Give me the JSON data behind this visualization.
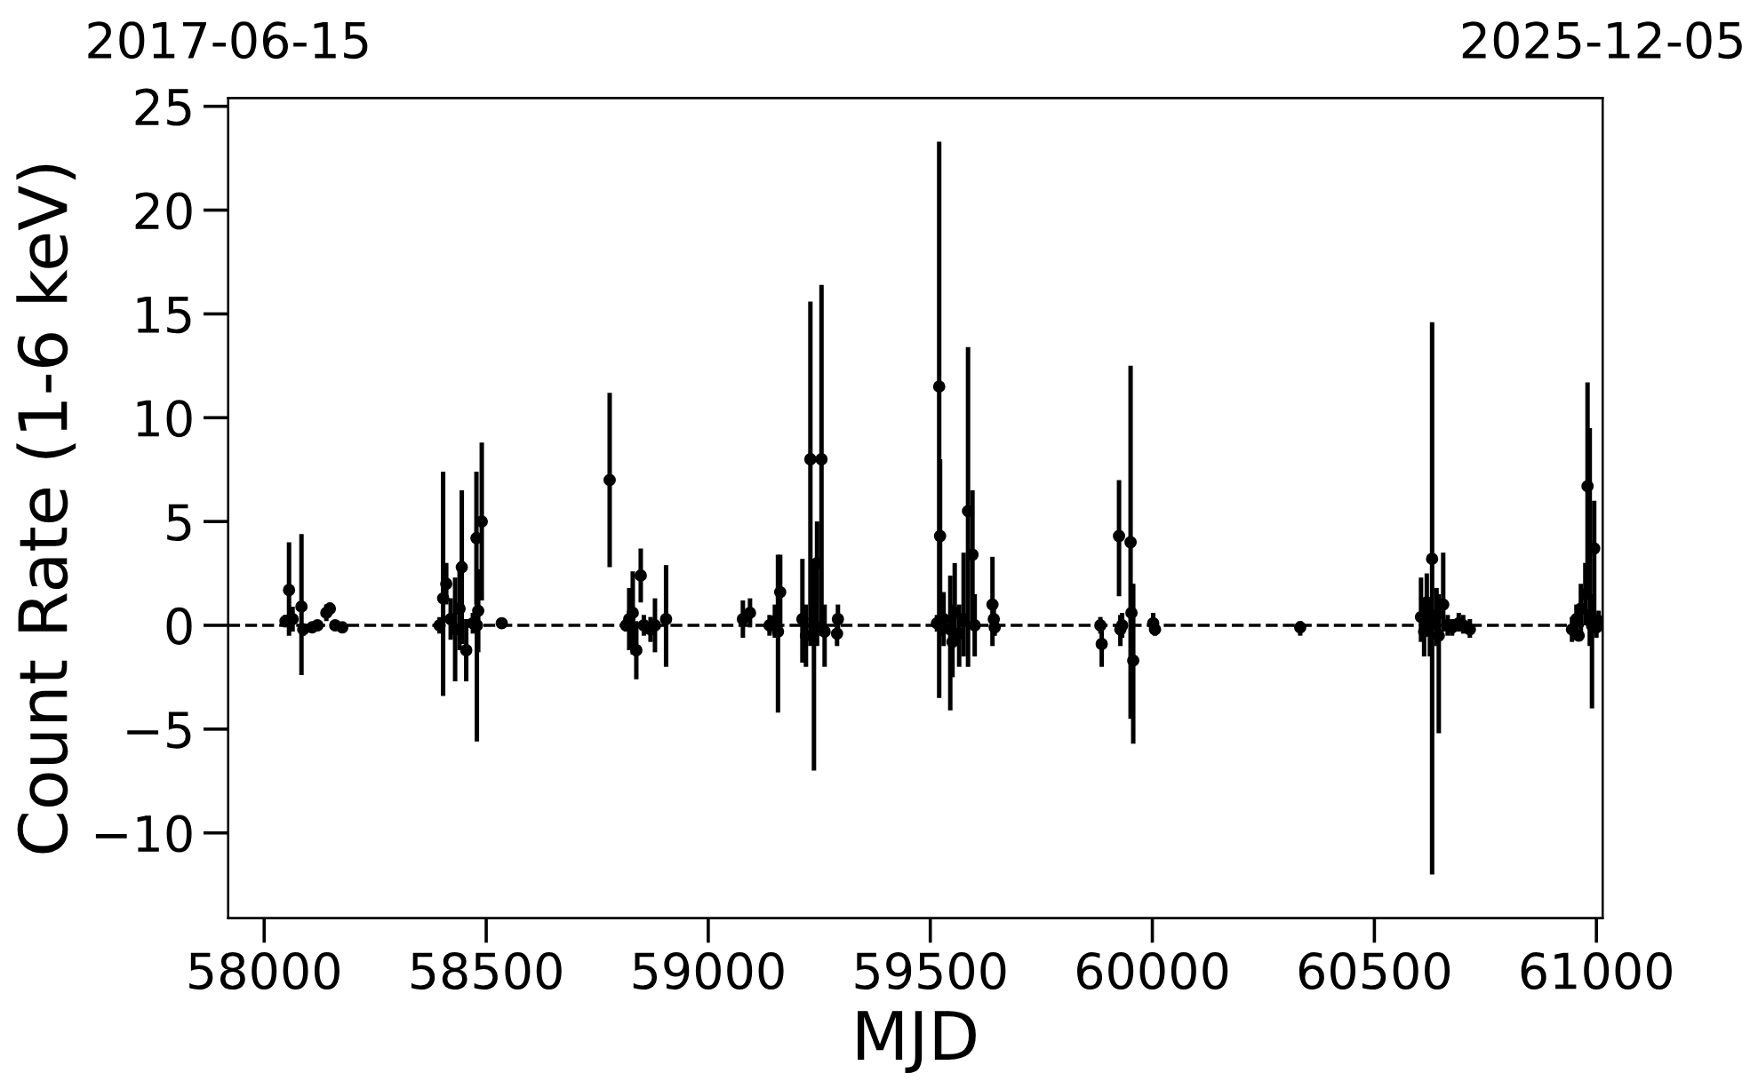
{
  "chart_data": {
    "type": "scatter",
    "xlabel": "MJD",
    "ylabel": "Count Rate (1-6 keV)",
    "xlim": [
      57919,
      61014
    ],
    "xticks": [
      58000,
      58500,
      59000,
      59500,
      60000,
      60500,
      61000
    ],
    "x2lim": [
      "2017-06-15",
      "2025-12-05"
    ],
    "x2ticks": [
      "2017-06-15",
      "2025-12-05"
    ],
    "ylim": [
      -14.1,
      25.4
    ],
    "yticks": [
      {
        "value": -10,
        "label": "−10"
      },
      {
        "value": -5,
        "label": "−5"
      },
      0,
      5,
      10,
      15,
      20,
      25
    ],
    "grid": false,
    "legend": false,
    "marker": "circle",
    "ref_lines": [
      {
        "axis": "y",
        "value": 0,
        "color": "#000000",
        "line_style": "dashed"
      }
    ],
    "series": [
      {
        "color": "#000000",
        "x": [
          58048,
          58056,
          58064,
          58084,
          58088,
          58108,
          58120,
          58140,
          58148,
          58160,
          58176,
          58395,
          58403,
          58410,
          58420,
          58430,
          58440,
          58445,
          58455,
          58470,
          58478,
          58479,
          58482,
          58490,
          58535,
          58778,
          58815,
          58822,
          58830,
          58838,
          58848,
          58855,
          58870,
          58880,
          58905,
          59078,
          59094,
          59138,
          59150,
          59157,
          59162,
          59212,
          59220,
          59230,
          59238,
          59245,
          59255,
          59262,
          59290,
          59292,
          59515,
          59520,
          59522,
          59530,
          59545,
          59550,
          59555,
          59565,
          59575,
          59585,
          59595,
          59600,
          59640,
          59643,
          59645,
          59883,
          59886,
          59925,
          59928,
          59932,
          59951,
          59953,
          59957,
          60002,
          60006,
          60333,
          60605,
          60612,
          60618,
          60625,
          60630,
          60640,
          60645,
          60655,
          60665,
          60675,
          60690,
          60700,
          60715,
          60945,
          60955,
          60960,
          60965,
          60975,
          60980,
          60985,
          60990,
          60995,
          61000,
          61005
        ],
        "values": [
          0.2,
          1.7,
          0.3,
          0.9,
          -0.2,
          -0.1,
          0.0,
          0.6,
          0.8,
          0.0,
          -0.1,
          0.0,
          1.3,
          2.0,
          0.3,
          -0.2,
          0.8,
          2.8,
          -1.2,
          0.1,
          4.2,
          0.0,
          0.7,
          5.0,
          0.1,
          7.0,
          0.0,
          0.3,
          0.6,
          -1.2,
          2.4,
          0.0,
          -0.2,
          0.0,
          0.3,
          0.3,
          0.6,
          0.0,
          0.2,
          -0.3,
          1.6,
          0.3,
          -0.5,
          8.0,
          0.0,
          3.0,
          8.0,
          -0.3,
          -0.4,
          0.3,
          0.1,
          11.5,
          4.3,
          0.3,
          -0.2,
          -0.8,
          0.6,
          -0.4,
          0.3,
          5.5,
          3.4,
          0.0,
          1.0,
          0.3,
          -0.1,
          0.0,
          -0.9,
          4.3,
          -0.2,
          0.0,
          4.0,
          0.6,
          -1.7,
          0.1,
          -0.2,
          -0.1,
          0.4,
          -0.3,
          1.1,
          0.0,
          3.2,
          0.5,
          -0.5,
          1.0,
          0.0,
          -0.1,
          0.1,
          0.0,
          -0.2,
          -0.2,
          0.3,
          -0.5,
          0.8,
          1.5,
          6.7,
          0.5,
          0.0,
          3.7,
          -0.1,
          0.2
        ],
        "errors": [
          [
            -0.1,
            0.5
          ],
          [
            -0.5,
            4.0
          ],
          [
            -0.3,
            0.9
          ],
          [
            -2.4,
            4.4
          ],
          [
            -0.5,
            0.1
          ],
          [
            -0.3,
            0.1
          ],
          [
            -0.2,
            0.2
          ],
          [
            0.2,
            1.0
          ],
          [
            0.5,
            1.1
          ],
          [
            -0.2,
            0.2
          ],
          [
            -0.3,
            0.1
          ],
          [
            -0.4,
            0.4
          ],
          [
            -3.4,
            7.4
          ],
          [
            1.0,
            3.0
          ],
          [
            -0.7,
            1.3
          ],
          [
            -2.7,
            2.3
          ],
          [
            -1.2,
            2.8
          ],
          [
            -0.9,
            6.5
          ],
          [
            -2.7,
            0.3
          ],
          [
            -0.4,
            0.6
          ],
          [
            1.0,
            7.4
          ],
          [
            -5.6,
            2.0
          ],
          [
            -1.3,
            2.7
          ],
          [
            1.2,
            8.8
          ],
          [
            -0.1,
            0.3
          ],
          [
            2.8,
            11.2
          ],
          [
            -0.3,
            0.3
          ],
          [
            -1.2,
            1.8
          ],
          [
            -1.4,
            2.6
          ],
          [
            -2.6,
            0.2
          ],
          [
            1.1,
            3.7
          ],
          [
            -0.5,
            0.5
          ],
          [
            -0.8,
            0.4
          ],
          [
            -1.3,
            1.3
          ],
          [
            -2.0,
            2.9
          ],
          [
            -0.6,
            1.2
          ],
          [
            -0.1,
            1.3
          ],
          [
            -0.5,
            0.5
          ],
          [
            -0.6,
            1.0
          ],
          [
            -4.2,
            3.4
          ],
          [
            -0.2,
            3.4
          ],
          [
            -1.8,
            3.2
          ],
          [
            -2.0,
            1.0
          ],
          [
            -1.0,
            15.6
          ],
          [
            -7.0,
            3.0
          ],
          [
            -1.0,
            5.0
          ],
          [
            -0.5,
            16.4
          ],
          [
            -2.0,
            1.0
          ],
          [
            -1.0,
            0.5
          ],
          [
            -0.5,
            1.0
          ],
          [
            -0.3,
            0.5
          ],
          [
            -3.5,
            23.3
          ],
          [
            -0.5,
            8.0
          ],
          [
            -1.0,
            1.6
          ],
          [
            -4.1,
            2.4
          ],
          [
            -2.5,
            1.0
          ],
          [
            -1.0,
            3.0
          ],
          [
            -2.0,
            1.0
          ],
          [
            -1.5,
            3.5
          ],
          [
            -2.0,
            13.4
          ],
          [
            0.0,
            6.5
          ],
          [
            -1.5,
            1.5
          ],
          [
            -1.0,
            3.3
          ],
          [
            -0.5,
            1.0
          ],
          [
            -0.5,
            0.4
          ],
          [
            -0.4,
            0.4
          ],
          [
            -2.0,
            0.1
          ],
          [
            1.4,
            7.0
          ],
          [
            -1.0,
            0.5
          ],
          [
            -0.6,
            0.6
          ],
          [
            -4.5,
            12.5
          ],
          [
            -0.5,
            2.0
          ],
          [
            -5.7,
            2.0
          ],
          [
            -0.3,
            0.6
          ],
          [
            -0.5,
            0.2
          ],
          [
            -0.5,
            0.2
          ],
          [
            -0.8,
            2.3
          ],
          [
            -1.5,
            1.0
          ],
          [
            -0.5,
            2.5
          ],
          [
            -1.5,
            1.0
          ],
          [
            -12.0,
            14.6
          ],
          [
            -1.0,
            1.8
          ],
          [
            -5.2,
            1.5
          ],
          [
            -0.3,
            3.5
          ],
          [
            -0.5,
            0.5
          ],
          [
            -0.5,
            0.3
          ],
          [
            -0.3,
            0.6
          ],
          [
            -0.4,
            0.5
          ],
          [
            -0.6,
            0.3
          ],
          [
            -0.8,
            0.4
          ],
          [
            -0.6,
            1.0
          ],
          null,
          [
            -0.4,
            2.0
          ],
          [
            0.0,
            3.0
          ],
          [
            1.7,
            11.7
          ],
          [
            -1.0,
            9.5
          ],
          [
            -4.0,
            1.5
          ],
          [
            0.5,
            6.0
          ],
          [
            -0.6,
            0.5
          ],
          [
            -0.3,
            0.7
          ]
        ]
      }
    ]
  }
}
